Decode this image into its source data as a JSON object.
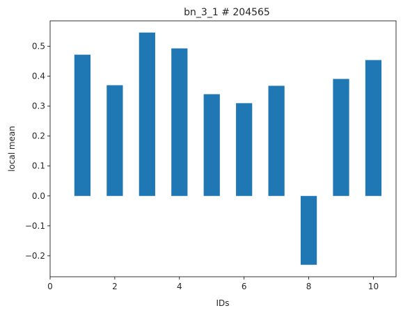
{
  "chart_data": {
    "type": "bar",
    "title": "bn_3_1 # 204565",
    "xlabel": "IDs",
    "ylabel": "local mean",
    "x": [
      1,
      2,
      3,
      4,
      5,
      6,
      7,
      8,
      9,
      10
    ],
    "values": [
      0.472,
      0.37,
      0.546,
      0.493,
      0.34,
      0.31,
      0.368,
      -0.23,
      0.391,
      0.454
    ],
    "xlim": [
      0,
      10.7
    ],
    "ylim": [
      -0.27,
      0.585
    ],
    "xticks": [
      0,
      2,
      4,
      6,
      8,
      10
    ],
    "yticks": [
      -0.2,
      -0.1,
      0.0,
      0.1,
      0.2,
      0.3,
      0.4,
      0.5
    ],
    "bar_color": "#1f77b4",
    "grid": false,
    "legend": "none"
  }
}
